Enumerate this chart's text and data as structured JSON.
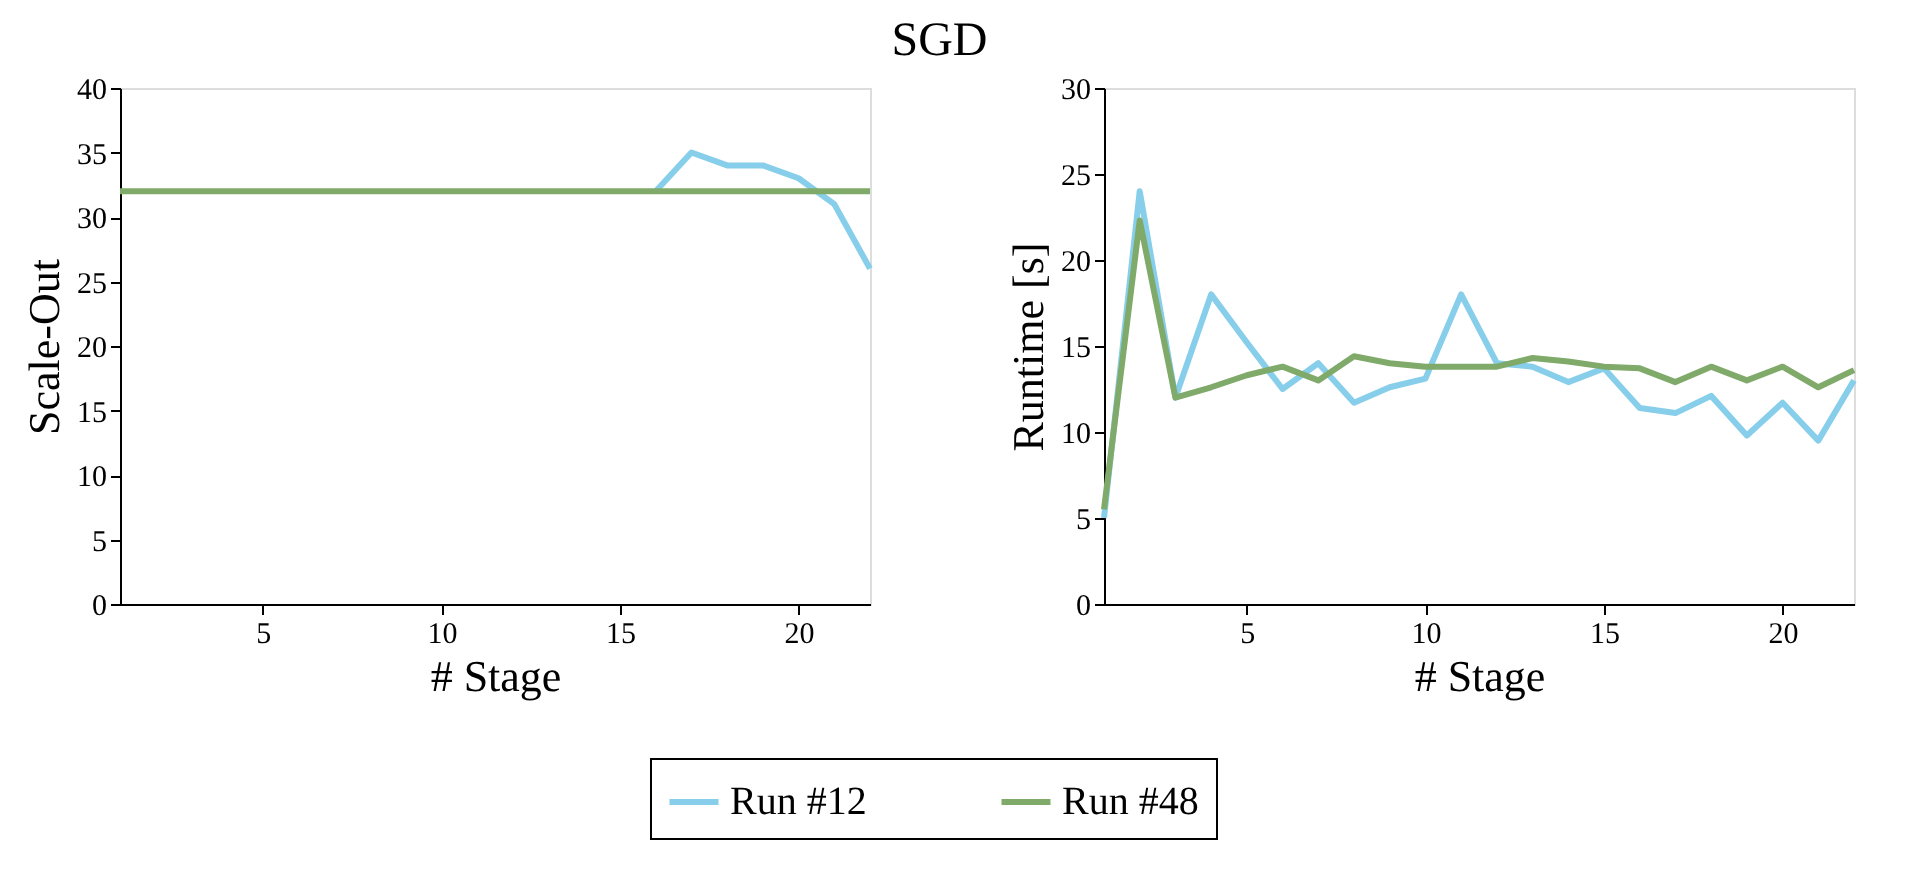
{
  "chart_data": [
    {
      "type": "line",
      "title": "SGD",
      "xlabel": "# Stage",
      "ylabel": "Scale-Out",
      "x": [
        1,
        2,
        3,
        4,
        5,
        6,
        7,
        8,
        9,
        10,
        11,
        12,
        13,
        14,
        15,
        16,
        17,
        18,
        19,
        20,
        21,
        22
      ],
      "xlim": [
        1,
        22
      ],
      "xticks": [
        5,
        10,
        15,
        20
      ],
      "ylim": [
        0,
        40
      ],
      "yticks": [
        0,
        5,
        10,
        15,
        20,
        25,
        30,
        35,
        40
      ],
      "grid": false,
      "legend": "bottom",
      "line_style": "solid",
      "marker": "none",
      "series": [
        {
          "name": "Run #12",
          "color": "#87ceeb",
          "values": [
            null,
            null,
            null,
            null,
            null,
            null,
            null,
            null,
            null,
            null,
            null,
            null,
            null,
            null,
            null,
            32,
            35,
            34,
            34,
            33,
            31,
            26
          ]
        },
        {
          "name": "Run #48",
          "color": "#7faa6a",
          "values": [
            32,
            32,
            32,
            32,
            32,
            32,
            32,
            32,
            32,
            32,
            32,
            32,
            32,
            32,
            32,
            32,
            32,
            32,
            32,
            32,
            32,
            32
          ]
        }
      ]
    },
    {
      "type": "line",
      "xlabel": "# Stage",
      "ylabel": "Runtime [s]",
      "x": [
        1,
        2,
        3,
        4,
        5,
        6,
        7,
        8,
        9,
        10,
        11,
        12,
        13,
        14,
        15,
        16,
        17,
        18,
        19,
        20,
        21,
        22
      ],
      "xlim": [
        1,
        22
      ],
      "xticks": [
        5,
        10,
        15,
        20
      ],
      "ylim": [
        0,
        30
      ],
      "yticks": [
        0,
        5,
        10,
        15,
        20,
        25,
        30
      ],
      "grid": false,
      "line_style": "solid",
      "marker": "none",
      "series": [
        {
          "name": "Run #12",
          "color": "#87ceeb",
          "values": [
            5,
            24,
            12,
            18,
            15.2,
            12.5,
            14,
            11.7,
            12.6,
            13.1,
            18,
            14,
            13.8,
            12.9,
            13.7,
            11.4,
            11.1,
            12.1,
            9.8,
            11.7,
            9.5,
            13
          ]
        },
        {
          "name": "Run #48",
          "color": "#7faa6a",
          "values": [
            5.5,
            22.3,
            12,
            12.6,
            13.3,
            13.8,
            13,
            14.4,
            14,
            13.8,
            13.8,
            13.8,
            14.3,
            14.1,
            13.8,
            13.7,
            12.9,
            13.8,
            13,
            13.8,
            12.6,
            13.6
          ]
        }
      ]
    }
  ]
}
